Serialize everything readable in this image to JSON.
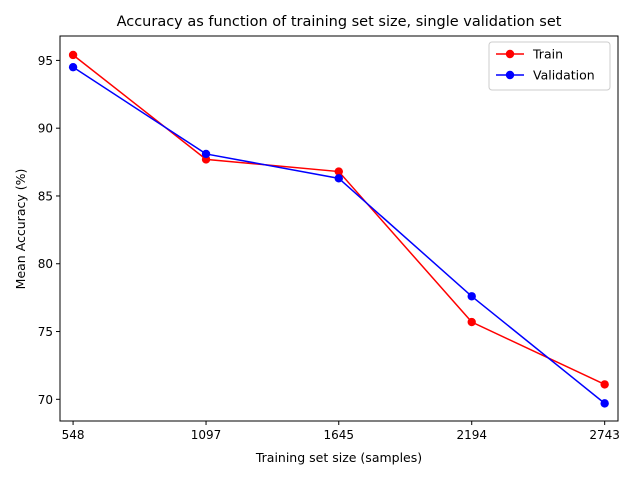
{
  "chart_data": {
    "type": "line",
    "title": "Accuracy as function of training set size, single validation set",
    "xlabel": "Training set size (samples)",
    "ylabel": "Mean Accuracy (%)",
    "x": [
      548,
      1097,
      1645,
      2194,
      2743
    ],
    "x_tick_labels": [
      "548",
      "1097",
      "1645",
      "2194",
      "2743"
    ],
    "y_ticks": [
      70,
      75,
      80,
      85,
      90,
      95
    ],
    "y_tick_labels": [
      "70",
      "75",
      "80",
      "85",
      "90",
      "95"
    ],
    "xlim": [
      494,
      2798
    ],
    "ylim": [
      68.4,
      96.8
    ],
    "grid": false,
    "legend_position": "top-right",
    "series": [
      {
        "name": "Train",
        "color": "#ff0000",
        "values": [
          95.4,
          87.7,
          86.8,
          75.7,
          71.1
        ]
      },
      {
        "name": "Validation",
        "color": "#0000ff",
        "values": [
          94.5,
          88.1,
          86.3,
          77.6,
          69.7
        ]
      }
    ]
  }
}
